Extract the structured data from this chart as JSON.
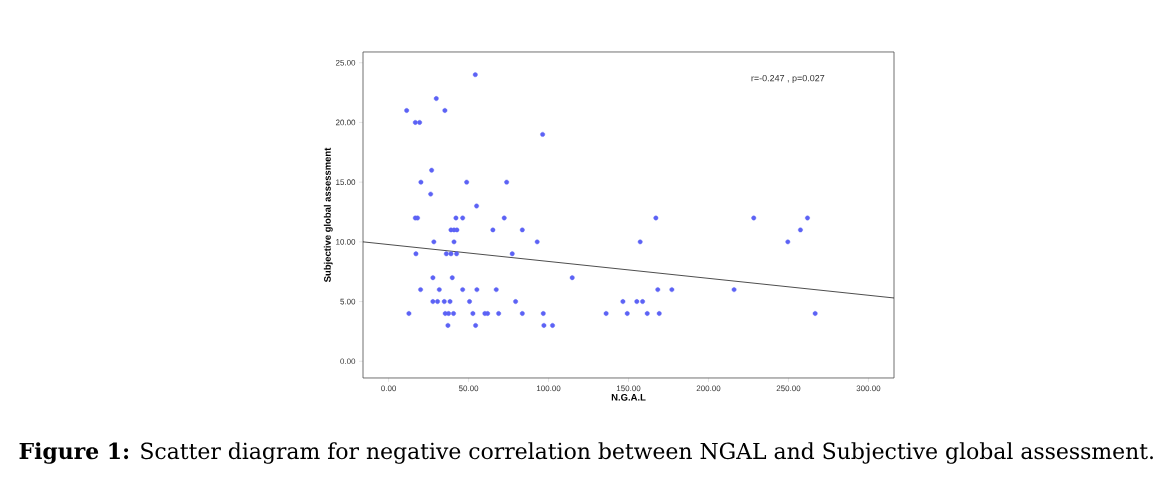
{
  "chart_data": {
    "type": "scatter",
    "xlabel": "N.G.A.L",
    "ylabel": "Subjective global assessment",
    "xlim": [
      -16,
      316
    ],
    "ylim": [
      -1.4,
      25.9
    ],
    "xticks": [
      {
        "value": 0,
        "label": "0.00"
      },
      {
        "value": 50,
        "label": "50.00"
      },
      {
        "value": 100,
        "label": "100.00"
      },
      {
        "value": 150,
        "label": "150.00"
      },
      {
        "value": 200,
        "label": "200.00"
      },
      {
        "value": 250,
        "label": "250.00"
      },
      {
        "value": 300,
        "label": "300.00"
      }
    ],
    "yticks": [
      {
        "value": 0,
        "label": "0.00"
      },
      {
        "value": 5,
        "label": "5.00"
      },
      {
        "value": 10,
        "label": "10.00"
      },
      {
        "value": 15,
        "label": "15.00"
      },
      {
        "value": 20,
        "label": "20.00"
      },
      {
        "value": 25,
        "label": "25.00"
      }
    ],
    "series": [
      {
        "marker": "circle",
        "color": "#5c62f5",
        "x": [
          54.2,
          29.8,
          11.3,
          35.2,
          16.7,
          19.4,
          96.3,
          26.9,
          20.2,
          48.8,
          73.8,
          26.3,
          55,
          16.7,
          18.1,
          42.1,
          46.3,
          72.3,
          39,
          40.9,
          42.7,
          65.2,
          83.6,
          28.3,
          40.9,
          92.9,
          17.1,
          36.1,
          39,
          42.5,
          77.3,
          27.7,
          39.8,
          20,
          31.7,
          46.3,
          55.2,
          67.3,
          27.7,
          30.6,
          34.8,
          38.4,
          50.6,
          79.4,
          12.7,
          35.4,
          37.5,
          40.6,
          52.7,
          60.2,
          61.9,
          68.8,
          83.6,
          96.7,
          37.1,
          54.4,
          97.1,
          102.5,
          167.1,
          228.3,
          261.9,
          257.5,
          157.3,
          249.6,
          114.8,
          168.3,
          177.1,
          216,
          146.5,
          155.2,
          158.8,
          136,
          149.2,
          161.7,
          169.2,
          266.7
        ],
        "values": [
          24,
          22,
          21,
          21,
          20,
          20,
          19,
          16,
          15,
          15,
          15,
          14,
          13,
          12,
          12,
          12,
          12,
          12,
          11,
          11,
          11,
          11,
          11,
          10,
          10,
          10,
          9,
          9,
          9,
          9,
          9,
          7,
          7,
          6,
          6,
          6,
          6,
          6,
          5,
          5,
          5,
          5,
          5,
          5,
          4,
          4,
          4,
          4,
          4,
          4,
          4,
          4,
          4,
          4,
          3,
          3,
          3,
          3,
          12,
          12,
          12,
          11,
          10,
          10,
          7,
          6,
          6,
          6,
          5,
          5,
          5,
          4,
          4,
          4,
          4,
          4
        ]
      },
      {
        "type": "line",
        "color": "#000000",
        "line_style": "solid",
        "marker": "none",
        "x": [
          -16,
          316
        ],
        "values": [
          10.0,
          5.3
        ]
      }
    ],
    "annotations": [
      "r=-0.247 , p=0.027",
      "**Figure 1:** Scatter diagram for negative correlation between NGAL and Subjective global assessment."
    ]
  }
}
